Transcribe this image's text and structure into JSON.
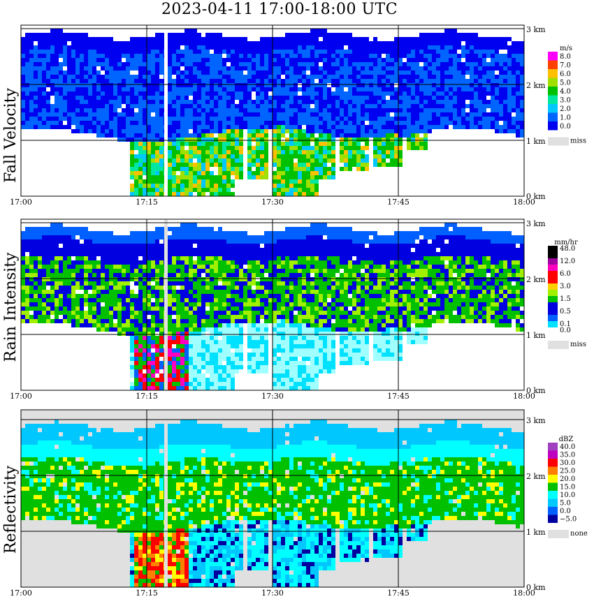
{
  "title": "2023-04-11   17:00-18:00 UTC",
  "panels": [
    {
      "key": "fall",
      "ylabel": "Fall Velocity",
      "unit": "m/s",
      "legend": [
        "8.0",
        "7.0",
        "6.0",
        "5.0",
        "4.0",
        "3.0",
        "2.0",
        "1.0",
        "0.0"
      ],
      "miss_label": "miss"
    },
    {
      "key": "rain",
      "ylabel": "Rain Intensity",
      "unit": "mm/hr",
      "legend": [
        "48.0",
        "",
        "12.0",
        "",
        "6.0",
        "",
        "3.0",
        "",
        "1.5",
        "",
        "0.5",
        "",
        "0.1",
        "0.0"
      ],
      "miss_label": "miss"
    },
    {
      "key": "refl",
      "ylabel": "Reflectivity",
      "unit": "dBZ",
      "legend": [
        "40.0",
        "35.0",
        "30.0",
        "25.0",
        "20.0",
        "15.0",
        "10.0",
        "5.0",
        "0.0",
        "−5.0"
      ],
      "miss_label": "none"
    }
  ],
  "chart_data": {
    "type": "heatmap",
    "title": "2023-04-11   17:00-18:00 UTC",
    "x_ticks": [
      "17:00",
      "17:15",
      "17:30",
      "17:45",
      "18:00"
    ],
    "y_ticks": [
      "0 km",
      "1 km",
      "2 km",
      "3 km"
    ],
    "xlim": [
      "17:00",
      "18:00"
    ],
    "ylim_km": [
      0,
      3.1
    ],
    "grid": true,
    "panels": [
      {
        "name": "Fall Velocity",
        "unit": "m/s",
        "levels": [
          0,
          1,
          2,
          3,
          4,
          5,
          6,
          7,
          8
        ],
        "colors": [
          "#0000f0",
          "#0064ff",
          "#00c8ff",
          "#00e8a0",
          "#00c000",
          "#a0e000",
          "#ffc000",
          "#ff4000",
          "#ff00ff"
        ],
        "echo_top_km": 2.9,
        "cloud_base_km": 1.0,
        "typical_above_base_mps": 1.5,
        "typical_below_base_mps": 4.0
      },
      {
        "name": "Rain Intensity",
        "unit": "mm/hr",
        "levels": [
          0.0,
          0.1,
          0.5,
          1.5,
          3.0,
          6.0,
          12.0,
          48.0
        ],
        "colors": [
          "#a0ffff",
          "#00e0ff",
          "#0060ff",
          "#0000e0",
          "#00c000",
          "#a0f000",
          "#ffd000",
          "#ff0000",
          "#ff00c0",
          "#a000a0",
          "#000000"
        ],
        "echo_top_km": 2.9,
        "cloud_base_km": 1.0,
        "typical_above_base_mmhr": 1.5,
        "typical_below_base_mmhr": 0.1
      },
      {
        "name": "Reflectivity",
        "unit": "dBZ",
        "levels": [
          -5,
          0,
          5,
          10,
          15,
          20,
          25,
          30,
          35,
          40
        ],
        "colors": [
          "#0000a0",
          "#0060ff",
          "#00c8ff",
          "#00ffff",
          "#00c000",
          "#ffff00",
          "#ff8000",
          "#ff0000",
          "#c000c0",
          "#a040c0"
        ],
        "echo_top_km": 2.9,
        "cloud_base_km": 1.0,
        "typical_above_base_dbz": 15,
        "typical_below_base_dbz": 10
      }
    ]
  }
}
